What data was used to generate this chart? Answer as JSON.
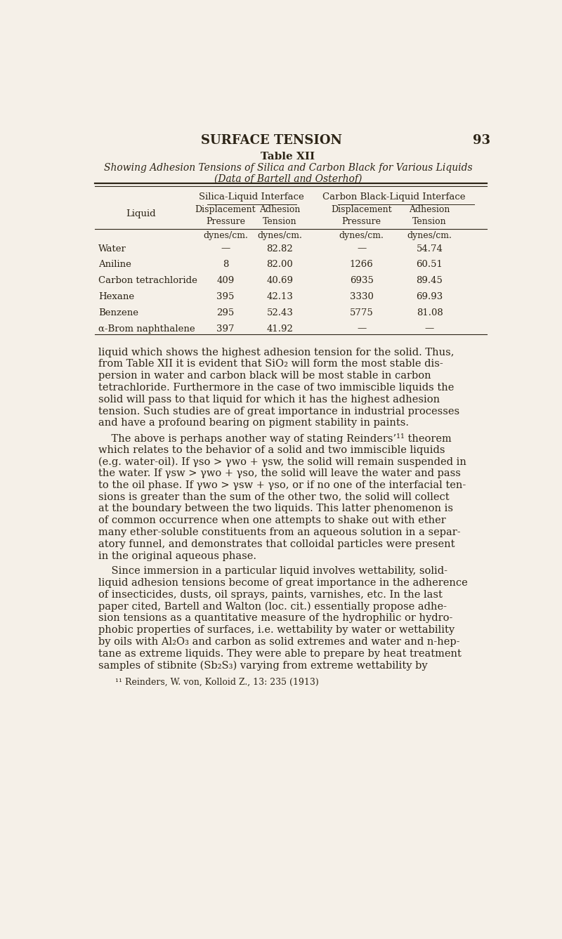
{
  "bg_color": "#f5f0e8",
  "text_color": "#2c2416",
  "page_header": "SURFACE TENSION",
  "page_number": "93",
  "table_title_line1": "Table XII",
  "table_title_line2": "Showing Adhesion Tensions of Silica and Carbon Black for Various Liquids",
  "table_title_line3": "(Data of Bartell and Osterhof)",
  "table_data": [
    [
      "Water",
      "—",
      "82.82",
      "—",
      "54.74"
    ],
    [
      "Aniline",
      "8",
      "82.00",
      "1266",
      "60.51"
    ],
    [
      "Carbon tetrachloride",
      "409",
      "40.69",
      "6935",
      "89.45"
    ],
    [
      "Hexane",
      "395",
      "42.13",
      "3330",
      "69.93"
    ],
    [
      "Benzene",
      "295",
      "52.43",
      "5775",
      "81.08"
    ],
    [
      "α-Brom naphthalene",
      "397",
      "41.92",
      "—",
      "—"
    ]
  ],
  "para1_lines": [
    "liquid which shows the highest adhesion tension for the solid. Thus,",
    "from Table XII it is evident that SiO₂ will form the most stable dis-",
    "persion in water and carbon black will be most stable in carbon",
    "tetrachloride. Furthermore in the case of two immiscible liquids the",
    "solid will pass to that liquid for which it has the highest adhesion",
    "tension. Such studies are of great importance in industrial processes",
    "and have a profound bearing on pigment stability in paints."
  ],
  "para2_lines": [
    "    The above is perhaps another way of stating Reinders’¹¹ theorem",
    "which relates to the behavior of a solid and two immiscible liquids",
    "(e.g. water-oil). If γso > γwo + γsw, the solid will remain suspended in",
    "the water. If γsw > γwo + γso, the solid will leave the water and pass",
    "to the oil phase. If γwo > γsw + γso, or if no one of the interfacial ten-",
    "sions is greater than the sum of the other two, the solid will collect",
    "at the boundary between the two liquids. This latter phenomenon is",
    "of common occurrence when one attempts to shake out with ether",
    "many ether-soluble constituents from an aqueous solution in a separ-",
    "atory funnel, and demonstrates that colloidal particles were present",
    "in the original aqueous phase."
  ],
  "para3_lines": [
    "    Since immersion in a particular liquid involves wettability, solid-",
    "liquid adhesion tensions become of great importance in the adherence",
    "of insecticides, dusts, oil sprays, paints, varnishes, etc. In the last",
    "paper cited, Bartell and Walton (loc. cit.) essentially propose adhe-",
    "sion tensions as a quantitative measure of the hydrophilic or hydro-",
    "phobic properties of surfaces, i.e. wettability by water or wettability",
    "by oils with Al₂O₃ and carbon as solid extremes and water and n-hep-",
    "tane as extreme liquids. They were able to prepare by heat treatment",
    "samples of stibnite (Sb₂S₃) varying from extreme wettability by"
  ],
  "footnote": "¹¹ Reinders, W. von, Kolloid Z., 13: 235 (1913)"
}
